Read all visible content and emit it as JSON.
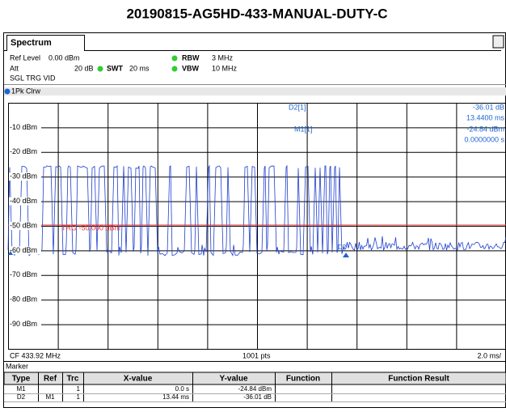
{
  "title": "20190815-AG5HD-433-MANUAL-DUTY-C",
  "tab": "Spectrum",
  "settings": {
    "ref_level_label": "Ref Level",
    "ref_level": "0.00 dBm",
    "rbw_label": "RBW",
    "rbw": "3 MHz",
    "att_label": "Att",
    "att": "20 dB",
    "swt_label": "SWT",
    "swt": "20 ms",
    "vbw_label": "VBW",
    "vbw": "10 MHz",
    "mode": "SGL TRG VID"
  },
  "trace_label": "1Pk Clrw",
  "marker_readout": {
    "d2_name": "D2[1]",
    "d2_level": "-36.01 dB",
    "d2_time": "13.4400 ms",
    "m1_name": "M1[1]",
    "m1_level": "-24.84 dBm",
    "m1_time": "0.0000000 s"
  },
  "y_labels": [
    "-10 dBm",
    "-20 dBm",
    "-30 dBm",
    "-40 dBm",
    "-50 dBm",
    "-60 dBm",
    "-70 dBm",
    "-80 dBm",
    "-90 dBm"
  ],
  "trigger_label": "TRG -50.000 dBm",
  "trace_marker": "D2",
  "footer": {
    "center": "CF 433.92 MHz",
    "points": "1001 pts",
    "span": "2.0 ms/"
  },
  "marker_table": {
    "title": "Marker",
    "columns": [
      "Type",
      "Ref",
      "Trc",
      "X-value",
      "Y-value",
      "Function",
      "Function Result"
    ],
    "rows": [
      {
        "type": "M1",
        "trc": "1",
        "x": "0.0 s",
        "y": "-24.84 dBm"
      },
      {
        "type": "D2",
        "ref": "M1",
        "trc": "1",
        "x": "13.44 ms",
        "y": "-36.01 dB"
      }
    ]
  }
}
